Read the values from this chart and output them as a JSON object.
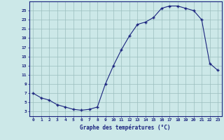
{
  "hours": [
    0,
    1,
    2,
    3,
    4,
    5,
    6,
    7,
    8,
    9,
    10,
    11,
    12,
    13,
    14,
    15,
    16,
    17,
    18,
    19,
    20,
    21,
    22,
    23
  ],
  "temps": [
    7,
    6,
    5.5,
    4.5,
    4,
    3.5,
    3.3,
    3.5,
    4,
    9,
    13,
    16.5,
    19.5,
    22,
    22.5,
    23.5,
    25.5,
    26,
    26,
    25.5,
    25,
    23,
    13.5,
    12
  ],
  "line_color": "#1a237e",
  "marker": "+",
  "bg_color": "#cce8e8",
  "grid_color": "#9bbebe",
  "xlabel": "Graphe des températures (°C)",
  "xlabel_color": "#1a237e",
  "xtick_labels": [
    "0",
    "1",
    "2",
    "3",
    "4",
    "5",
    "6",
    "7",
    "8",
    "9",
    "10",
    "11",
    "12",
    "13",
    "14",
    "15",
    "16",
    "17",
    "18",
    "19",
    "20",
    "21",
    "22",
    "23"
  ],
  "ytick_labels": [
    "3",
    "5",
    "7",
    "9",
    "11",
    "13",
    "15",
    "17",
    "19",
    "21",
    "23",
    "25"
  ],
  "yticks": [
    3,
    5,
    7,
    9,
    11,
    13,
    15,
    17,
    19,
    21,
    23,
    25
  ],
  "ylim": [
    2.0,
    27.0
  ],
  "xlim": [
    -0.5,
    23.5
  ]
}
